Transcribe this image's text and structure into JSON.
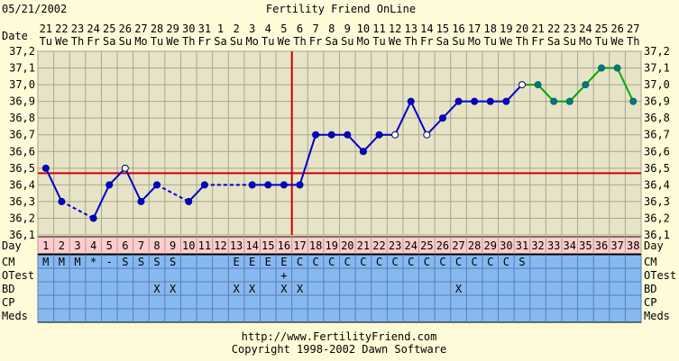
{
  "header": {
    "date": "05/21/2002",
    "title": "Fertility Friend OnLine"
  },
  "row_labels": {
    "date": "Date",
    "day": "Day",
    "rows": [
      "CM",
      "OTest",
      "BD",
      "CP",
      "Meds"
    ]
  },
  "footer": {
    "url": "http://www.FertilityFriend.com",
    "copyright": "Copyright 1998-2002 Dawn Software"
  },
  "colors": {
    "background": "#fffbd8",
    "plot_bg": "#e7e3c6",
    "grid": "#a8a68c",
    "line_blue": "#0000cc",
    "line_green": "#00aa00",
    "coverline": "#cc0000",
    "day_row_bg": "#ffcccc",
    "obs_bg": "#88b8f0"
  },
  "chart_data": {
    "type": "line",
    "title": "Fertility Friend OnLine",
    "ylabel": "",
    "xlabel": "",
    "ylim": [
      36.1,
      37.2
    ],
    "yticks": [
      "36,1",
      "36,2",
      "36,3",
      "36,4",
      "36,5",
      "36,6",
      "36,7",
      "36,8",
      "36,9",
      "37,0",
      "37,1",
      "37,2"
    ],
    "grid": true,
    "categories": [
      "1",
      "2",
      "3",
      "4",
      "5",
      "6",
      "7",
      "8",
      "9",
      "10",
      "11",
      "12",
      "13",
      "14",
      "15",
      "16",
      "17",
      "18",
      "19",
      "20",
      "21",
      "22",
      "23",
      "24",
      "25",
      "26",
      "27",
      "28",
      "29",
      "30",
      "31",
      "32",
      "33",
      "34",
      "35",
      "36",
      "37",
      "38"
    ],
    "dates": [
      "21",
      "22",
      "23",
      "24",
      "25",
      "26",
      "27",
      "28",
      "29",
      "30",
      "31",
      "1",
      "2",
      "3",
      "4",
      "5",
      "6",
      "7",
      "8",
      "9",
      "10",
      "11",
      "12",
      "13",
      "14",
      "15",
      "16",
      "17",
      "18",
      "19",
      "20",
      "21",
      "22",
      "23",
      "24",
      "25",
      "26",
      "27"
    ],
    "weekdays": [
      "Tu",
      "We",
      "Th",
      "Fr",
      "Sa",
      "Su",
      "Mo",
      "Tu",
      "We",
      "Th",
      "Fr",
      "Sa",
      "Su",
      "Mo",
      "Tu",
      "We",
      "Th",
      "Fr",
      "Sa",
      "Su",
      "Mo",
      "Tu",
      "We",
      "Th",
      "Fr",
      "Sa",
      "Su",
      "Mo",
      "Tu",
      "We",
      "Th",
      "Fr",
      "Sa",
      "Su",
      "Mo",
      "Tu",
      "We",
      "Th"
    ],
    "temps": [
      36.5,
      36.3,
      null,
      36.2,
      36.4,
      36.5,
      36.3,
      36.4,
      null,
      36.3,
      36.4,
      null,
      null,
      36.4,
      36.4,
      36.4,
      36.4,
      36.7,
      36.7,
      36.7,
      36.6,
      36.7,
      36.7,
      36.9,
      36.7,
      36.8,
      36.9,
      36.9,
      36.9,
      36.9,
      37.0,
      37.0,
      36.9,
      36.9,
      37.0,
      37.1,
      37.1,
      36.9
    ],
    "open_markers": [
      6,
      23,
      25,
      31
    ],
    "projected_from_day": 31,
    "coverline_temp": 36.47,
    "ovulation_day": 17,
    "cm": [
      "M",
      "M",
      "M",
      "*",
      "-",
      "S",
      "S",
      "S",
      "S",
      "",
      "",
      "",
      "E",
      "E",
      "E",
      "E",
      "C",
      "C",
      "C",
      "C",
      "C",
      "C",
      "C",
      "C",
      "C",
      "C",
      "C",
      "C",
      "C",
      "C",
      "S",
      "",
      "",
      "",
      "",
      "",
      "",
      ""
    ],
    "otest": [
      "",
      "",
      "",
      "",
      "",
      "",
      "",
      "",
      "",
      "",
      "",
      "",
      "",
      "",
      "",
      "+",
      "",
      "",
      "",
      "",
      "",
      "",
      "",
      "",
      "",
      "",
      "",
      "",
      "",
      "",
      "",
      "",
      "",
      "",
      "",
      "",
      "",
      ""
    ],
    "bd": [
      "",
      "",
      "",
      "",
      "",
      "",
      "",
      "X",
      "X",
      "",
      "",
      "",
      "X",
      "X",
      "",
      "X",
      "X",
      "",
      "",
      "",
      "",
      "",
      "",
      "",
      "",
      "",
      "X",
      "",
      "",
      "",
      "",
      "",
      "",
      "",
      "",
      "",
      "",
      ""
    ],
    "cp": [
      "",
      "",
      "",
      "",
      "",
      "",
      "",
      "",
      "",
      "",
      "",
      "",
      "",
      "",
      "",
      "",
      "",
      "",
      "",
      "",
      "",
      "",
      "",
      "",
      "",
      "",
      "",
      "",
      "",
      "",
      "",
      "",
      "",
      "",
      "",
      "",
      "",
      ""
    ],
    "meds": [
      "",
      "",
      "",
      "",
      "",
      "",
      "",
      "",
      "",
      "",
      "",
      "",
      "",
      "",
      "",
      "",
      "",
      "",
      "",
      "",
      "",
      "",
      "",
      "",
      "",
      "",
      "",
      "",
      "",
      "",
      "",
      "",
      "",
      "",
      "",
      "",
      "",
      ""
    ]
  }
}
